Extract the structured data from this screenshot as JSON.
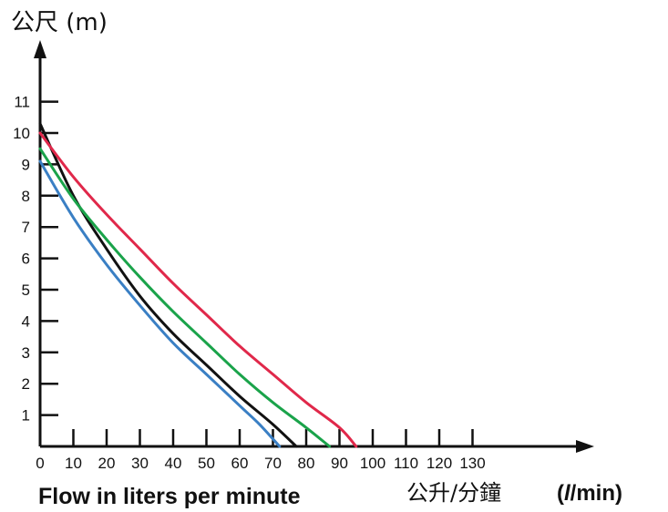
{
  "chart_data": {
    "type": "line",
    "ylabel": "公尺 (m)",
    "xlabel_cn": "公升/分鐘",
    "xlabel_unit_l": "l",
    "xlabel_unit_rest": "/min)",
    "xlabel_unit_open": "(",
    "caption": "Flow in liters per minute",
    "x_ticks": [
      0,
      10,
      20,
      30,
      40,
      50,
      60,
      70,
      80,
      90,
      100,
      110,
      120,
      130
    ],
    "y_ticks": [
      1,
      2,
      3,
      4,
      5,
      6,
      7,
      8,
      9,
      10,
      11
    ],
    "xlim": [
      0,
      130
    ],
    "ylim": [
      0,
      11
    ],
    "grid": false,
    "series": [
      {
        "color": "#3a7fc4",
        "x": [
          0,
          10,
          20,
          30,
          40,
          50,
          60,
          66,
          72
        ],
        "y": [
          9.1,
          7.3,
          5.8,
          4.5,
          3.3,
          2.3,
          1.3,
          0.7,
          0
        ]
      },
      {
        "color": "#111111",
        "x": [
          0,
          10,
          20,
          30,
          40,
          50,
          60,
          70,
          77
        ],
        "y": [
          10.3,
          8.0,
          6.3,
          4.8,
          3.6,
          2.6,
          1.6,
          0.7,
          0
        ]
      },
      {
        "color": "#1aa34a",
        "x": [
          0,
          10,
          20,
          30,
          40,
          50,
          60,
          70,
          80,
          87
        ],
        "y": [
          9.5,
          7.9,
          6.6,
          5.4,
          4.3,
          3.3,
          2.3,
          1.4,
          0.6,
          0
        ]
      },
      {
        "color": "#e0284a",
        "x": [
          0,
          10,
          20,
          30,
          40,
          50,
          60,
          70,
          80,
          90,
          95
        ],
        "y": [
          10.0,
          8.6,
          7.4,
          6.3,
          5.2,
          4.2,
          3.2,
          2.3,
          1.4,
          0.6,
          0
        ]
      }
    ]
  }
}
